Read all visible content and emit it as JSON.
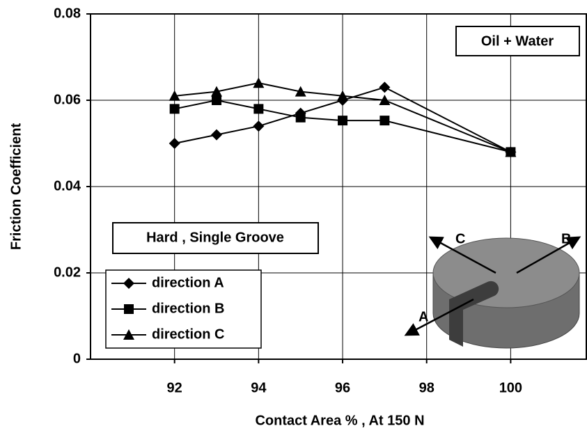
{
  "chart_data": {
    "type": "line",
    "x_label": "Contact Area %   , At 150 N",
    "y_label": "Friction Coefficient",
    "xlim": [
      90,
      101.8
    ],
    "xticks": [
      92,
      94,
      96,
      98,
      100
    ],
    "ylim": [
      0,
      0.08
    ],
    "yticks": [
      0,
      0.02,
      0.04,
      0.06,
      0.08
    ],
    "grid": true,
    "legend": "lower left",
    "x": [
      92,
      93,
      94,
      95,
      96,
      97,
      100
    ],
    "series": [
      {
        "name": "direction A",
        "color": "#000000",
        "marker": "diamond",
        "values": [
          0.05,
          0.052,
          0.054,
          0.057,
          0.06,
          0.063,
          0.048
        ]
      },
      {
        "name": "direction B",
        "color": "#000000",
        "marker": "square",
        "values": [
          0.058,
          0.06,
          0.058,
          0.056,
          0.0553,
          0.0553,
          0.048
        ]
      },
      {
        "name": "direction C",
        "color": "#000000",
        "marker": "triangle",
        "values": [
          0.061,
          0.062,
          0.064,
          0.062,
          0.061,
          0.06,
          0.048
        ]
      }
    ],
    "annotations": [
      "Oil + Water",
      "Hard , Single Groove"
    ],
    "diagram_labels": [
      "A",
      "B",
      "C"
    ]
  }
}
